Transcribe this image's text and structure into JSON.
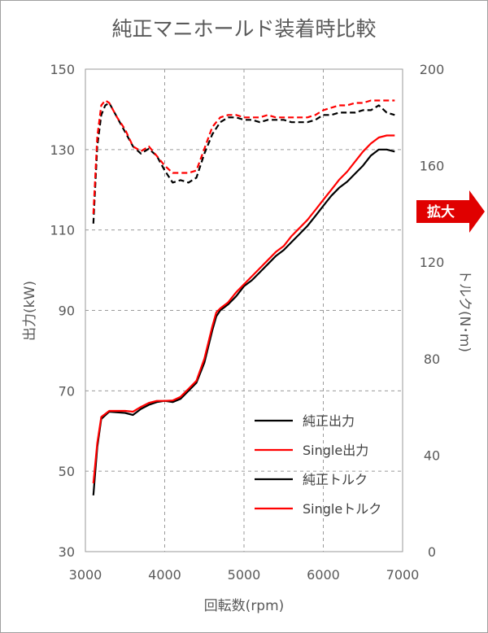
{
  "badge": {
    "label": "拡大",
    "color": "#e00000"
  },
  "chart_data": {
    "type": "line",
    "title": "純正マニホールド装着時比較",
    "xlabel": "回転数(rpm)",
    "ylabel_left": "出力(kW)",
    "ylabel_right": "トルク(N･m)",
    "xlim": [
      3000,
      7000
    ],
    "ylim_left": [
      30,
      150
    ],
    "ylim_right": [
      0,
      200
    ],
    "xticks": [
      "3000",
      "4000",
      "5000",
      "6000",
      "7000"
    ],
    "yticks_left": [
      "30",
      "50",
      "70",
      "90",
      "110",
      "130",
      "150"
    ],
    "yticks_right": [
      "0",
      "40",
      "80",
      "120",
      "160",
      "200"
    ],
    "grid": true,
    "legend_position": "bottom-right",
    "series": [
      {
        "name": "純正出力",
        "axis": "left",
        "color": "#000000",
        "dash": "solid",
        "x": [
          3100,
          3150,
          3200,
          3300,
          3500,
          3600,
          3700,
          3800,
          3900,
          4000,
          4100,
          4200,
          4300,
          4400,
          4500,
          4600,
          4650,
          4700,
          4800,
          4900,
          5000,
          5100,
          5200,
          5300,
          5400,
          5500,
          5600,
          5700,
          5800,
          5900,
          6000,
          6100,
          6200,
          6300,
          6400,
          6500,
          6600,
          6700,
          6800,
          6900
        ],
        "y": [
          44,
          56,
          63,
          64.8,
          64.5,
          64,
          65.5,
          66.5,
          67.2,
          67.5,
          67.2,
          68,
          70,
          72,
          77,
          85,
          88.5,
          90,
          91.5,
          93.5,
          96,
          97.5,
          99.5,
          101.5,
          103.5,
          105,
          107,
          109,
          111,
          113.5,
          116,
          118.5,
          120.5,
          122,
          124,
          126,
          128.5,
          130,
          130,
          129.5
        ]
      },
      {
        "name": "Single出力",
        "axis": "left",
        "color": "#ff0000",
        "dash": "solid",
        "x": [
          3100,
          3150,
          3200,
          3300,
          3500,
          3600,
          3700,
          3800,
          3900,
          4000,
          4100,
          4200,
          4300,
          4400,
          4500,
          4600,
          4650,
          4700,
          4800,
          4900,
          5000,
          5100,
          5200,
          5300,
          5400,
          5500,
          5600,
          5700,
          5800,
          5900,
          6000,
          6100,
          6200,
          6300,
          6400,
          6500,
          6600,
          6700,
          6800,
          6900
        ],
        "y": [
          47,
          57,
          63.5,
          65,
          65,
          64.8,
          66,
          67,
          67.5,
          67.5,
          67.6,
          68.5,
          70.5,
          72.5,
          78,
          86,
          89.5,
          90.5,
          92,
          94.5,
          96.5,
          98.5,
          100.5,
          102.5,
          104.5,
          106,
          108.5,
          110.5,
          112.5,
          115,
          117.5,
          120,
          122.5,
          124.5,
          127,
          129.5,
          131.5,
          133,
          133.5,
          133.5
        ]
      },
      {
        "name": "純正トルク",
        "axis": "right",
        "color": "#000000",
        "dash": "dashed",
        "x": [
          3100,
          3150,
          3200,
          3250,
          3300,
          3400,
          3500,
          3600,
          3700,
          3800,
          3900,
          4000,
          4100,
          4200,
          4300,
          4400,
          4500,
          4600,
          4700,
          4800,
          4900,
          5000,
          5100,
          5200,
          5300,
          5400,
          5500,
          5600,
          5700,
          5800,
          5900,
          6000,
          6100,
          6200,
          6300,
          6400,
          6500,
          6600,
          6700,
          6800,
          6900
        ],
        "y": [
          136,
          168,
          181,
          185,
          186,
          180,
          174,
          168,
          165,
          167,
          164,
          158,
          153,
          154,
          153,
          155,
          165,
          173,
          178,
          180,
          180,
          179,
          179,
          178,
          179,
          179,
          179,
          178,
          178,
          178,
          179,
          181,
          181,
          182,
          182,
          182,
          183,
          183,
          185,
          182,
          181
        ]
      },
      {
        "name": "Singleトルク",
        "axis": "right",
        "color": "#ff0000",
        "dash": "dashed",
        "x": [
          3100,
          3150,
          3200,
          3250,
          3300,
          3400,
          3500,
          3600,
          3700,
          3800,
          3900,
          4000,
          4100,
          4200,
          4300,
          4400,
          4500,
          4600,
          4700,
          4800,
          4900,
          5000,
          5100,
          5200,
          5300,
          5400,
          5500,
          5600,
          5700,
          5800,
          5900,
          6000,
          6100,
          6200,
          6300,
          6400,
          6500,
          6600,
          6700,
          6800,
          6900
        ],
        "y": [
          140,
          172,
          185,
          187,
          186,
          180,
          175,
          168,
          166,
          168,
          164,
          160,
          157,
          157,
          157,
          158,
          167,
          176,
          180,
          181,
          181,
          180,
          180,
          180,
          181,
          180,
          180,
          180,
          180,
          180,
          181,
          183,
          184,
          185,
          185,
          186,
          186,
          187,
          187,
          187,
          187
        ]
      }
    ]
  }
}
